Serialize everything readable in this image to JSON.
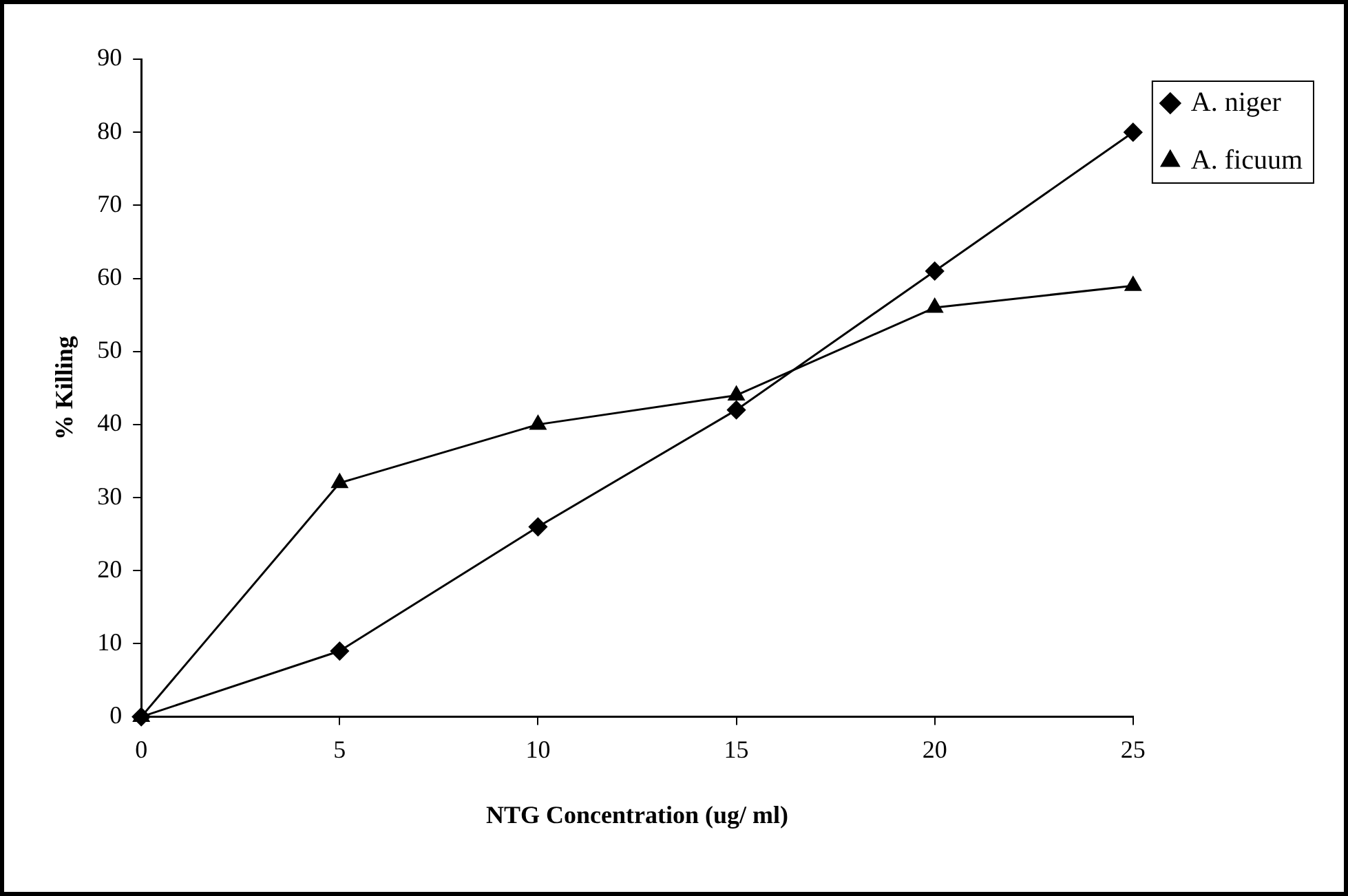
{
  "chart_data": {
    "type": "line",
    "xlabel": "NTG Concentration (ug/ ml)",
    "ylabel": "% Killing",
    "x": [
      0,
      5,
      10,
      15,
      20,
      25
    ],
    "xlim": [
      0,
      25
    ],
    "xticks": [
      0,
      5,
      10,
      15,
      20,
      25
    ],
    "ylim": [
      0,
      90
    ],
    "yticks": [
      0,
      10,
      20,
      30,
      40,
      50,
      60,
      70,
      80,
      90
    ],
    "grid": false,
    "legend": "top right",
    "line_style": "solid",
    "series": [
      {
        "name": "A. niger",
        "color": "#000000",
        "marker": "diamond",
        "values": [
          0,
          9,
          26,
          42,
          61,
          80
        ]
      },
      {
        "name": "A. ficuum",
        "color": "#000000",
        "marker": "triangle",
        "values": [
          0,
          32,
          40,
          44,
          56,
          59
        ]
      }
    ]
  }
}
